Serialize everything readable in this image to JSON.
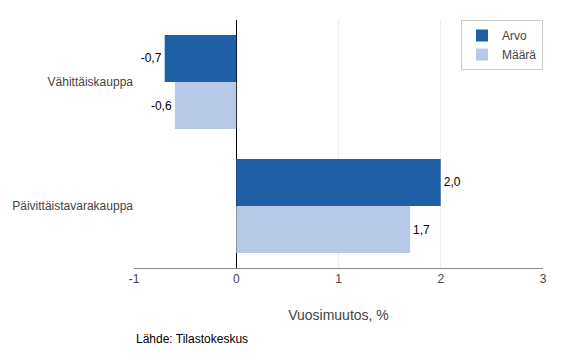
{
  "chart_data": {
    "type": "bar",
    "orientation": "horizontal",
    "categories": [
      "Päivittäistavarakauppa",
      "Vähittäiskauppa"
    ],
    "series": [
      {
        "name": "Arvo",
        "color": "#1F5FA6",
        "values": [
          2.0,
          -0.7
        ],
        "value_labels": [
          "2,0",
          "-0,7"
        ]
      },
      {
        "name": "Määrä",
        "color": "#B8C9E8",
        "values": [
          1.7,
          -0.6
        ],
        "value_labels": [
          "1,7",
          "-0,6"
        ]
      }
    ],
    "xlabel": "Vuosimuutos, %",
    "xlim": [
      -1,
      3
    ],
    "xticks": [
      -1,
      0,
      1,
      2,
      3
    ],
    "grid": true,
    "legend": "upper right",
    "data_labels": true,
    "annotations": [
      "Lähde: Tilastokeskus"
    ]
  }
}
